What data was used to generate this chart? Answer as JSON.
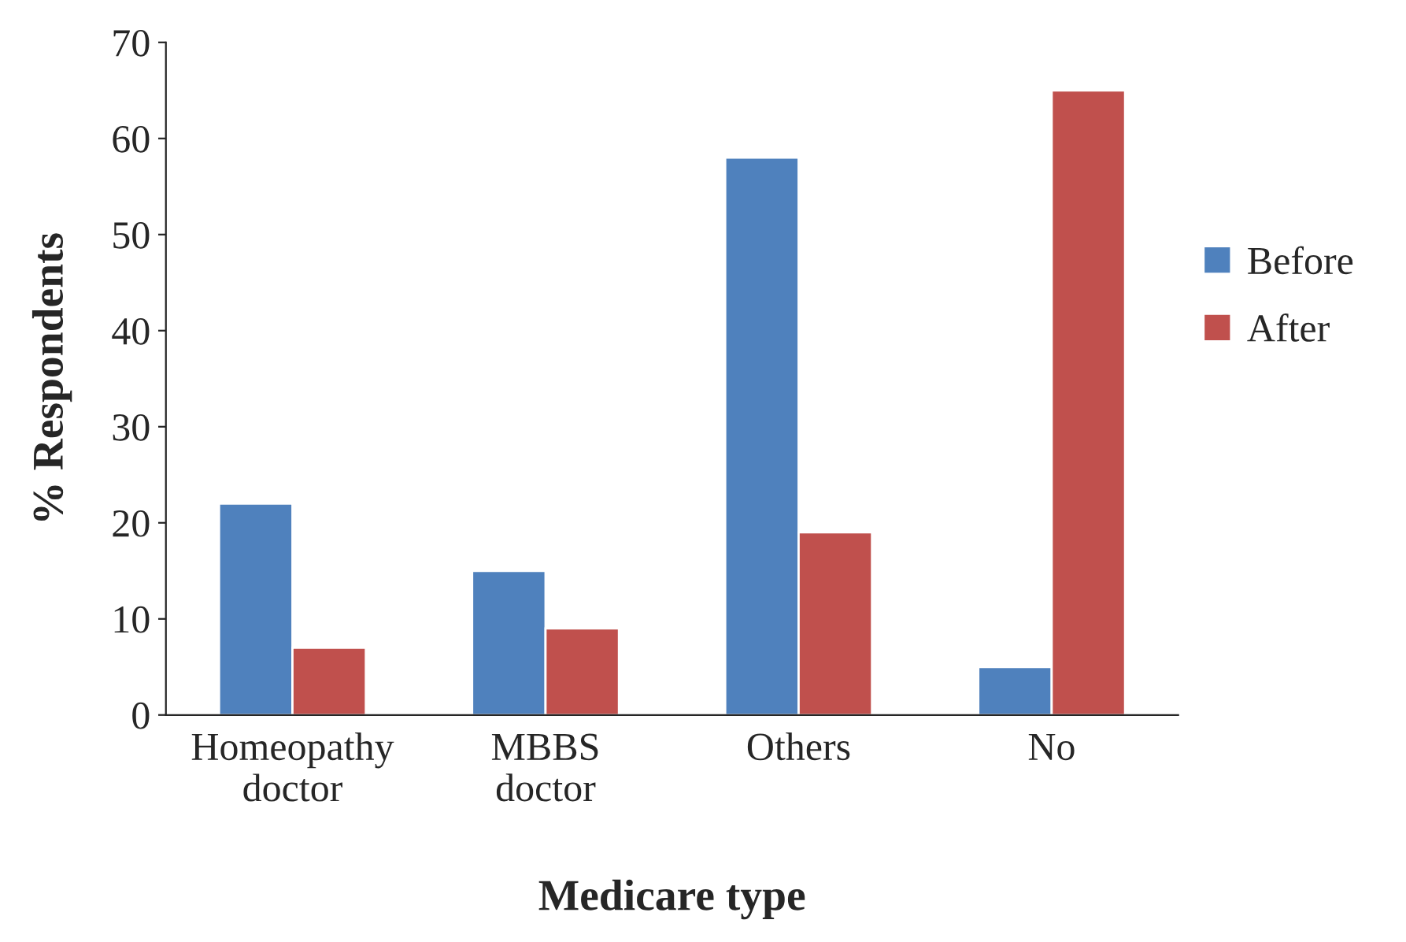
{
  "chart_data": {
    "type": "bar",
    "xlabel": "Medicare type",
    "ylabel": "% Respondents",
    "categories": [
      "Homeopathy\ndoctor",
      "MBBS\ndoctor",
      "Others",
      "No"
    ],
    "series": [
      {
        "name": "Before",
        "color": "#4f81bd",
        "values": [
          22,
          15,
          58,
          5
        ]
      },
      {
        "name": "After",
        "color": "#c0504d",
        "values": [
          7,
          9,
          19,
          65
        ]
      }
    ],
    "ylim": [
      0,
      70
    ],
    "yticks": [
      0,
      10,
      20,
      30,
      40,
      50,
      60,
      70
    ],
    "grid": false,
    "legend": "right"
  }
}
